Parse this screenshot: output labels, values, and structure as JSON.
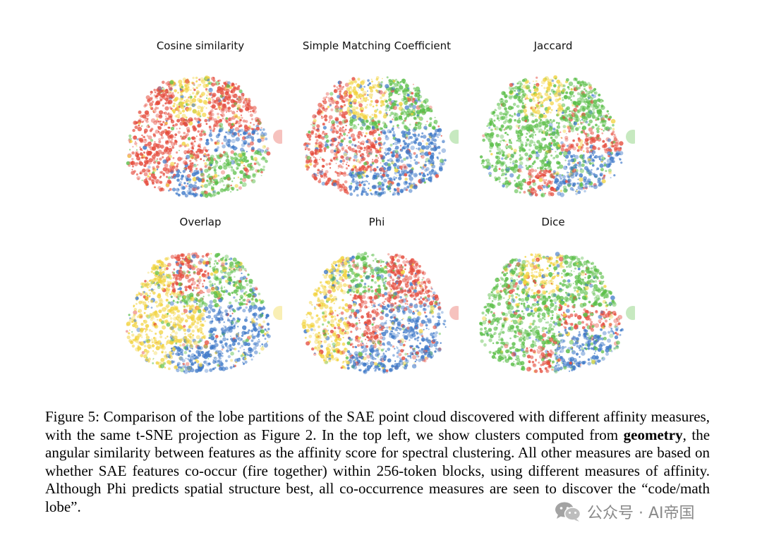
{
  "figure": {
    "panels": [
      {
        "title": "Cosine similarity",
        "palette": [
          "#e54b3c",
          "#e54b3c",
          "#e54b3c",
          "#f2d33f",
          "#5cbf4a",
          "#3d78c8"
        ],
        "lobe": "#f4b3ae"
      },
      {
        "title": "Simple Matching Coefficient",
        "palette": [
          "#e54b3c",
          "#e54b3c",
          "#5cbf4a",
          "#f2d33f",
          "#3d78c8",
          "#3d78c8"
        ],
        "lobe": "#b9e3b0"
      },
      {
        "title": "Jaccard",
        "palette": [
          "#5cbf4a",
          "#5cbf4a",
          "#5cbf4a",
          "#f2d33f",
          "#3d78c8",
          "#e54b3c"
        ],
        "lobe": "#b9e3b0"
      },
      {
        "title": "Overlap",
        "palette": [
          "#f2d33f",
          "#f2d33f",
          "#5cbf4a",
          "#e54b3c",
          "#3d78c8",
          "#3d78c8"
        ],
        "lobe": "#f7eba2"
      },
      {
        "title": "Phi",
        "palette": [
          "#f2d33f",
          "#e54b3c",
          "#e54b3c",
          "#5cbf4a",
          "#3d78c8",
          "#3d78c8"
        ],
        "lobe": "#f4b3ae"
      },
      {
        "title": "Dice",
        "palette": [
          "#5cbf4a",
          "#5cbf4a",
          "#5cbf4a",
          "#f2d33f",
          "#3d78c8",
          "#e54b3c"
        ],
        "lobe": "#b9e3b0"
      }
    ]
  },
  "caption": {
    "label": "Figure 5:",
    "text_1": " Comparison of the lobe partitions of the SAE point cloud discovered with different affinity measures, with the same t-SNE projection as Figure 2.  In the top left, we show clusters computed from ",
    "bold": "geometry",
    "text_2": ", the angular similarity between features as the affinity score for spectral clustering. All other measures are based on whether SAE features co-occur (fire together) within 256-token blocks, using different measures of affinity.  Although Phi predicts spatial structure best, all co-occurrence measures are seen to discover the “code/math lobe”."
  },
  "watermark": {
    "text": "公众号 · AI帝国",
    "icon": "wechat-icon"
  }
}
